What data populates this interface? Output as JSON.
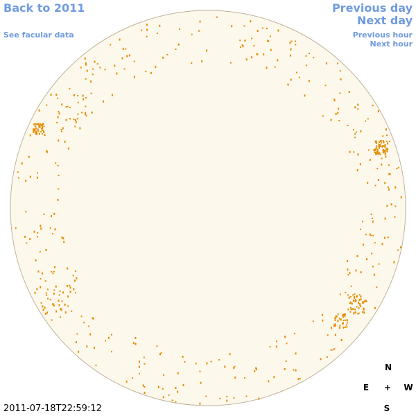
{
  "links": {
    "back": "Back to 2011",
    "facular": "See facular data",
    "prev_day": "Previous day",
    "next_day": "Next day",
    "prev_hour": "Previous hour",
    "next_hour": "Next hour"
  },
  "timestamp": "2011-07-18T22:59:12",
  "compass": {
    "north": "N",
    "east": "E",
    "center": "+",
    "west": "W",
    "south": "S"
  }
}
